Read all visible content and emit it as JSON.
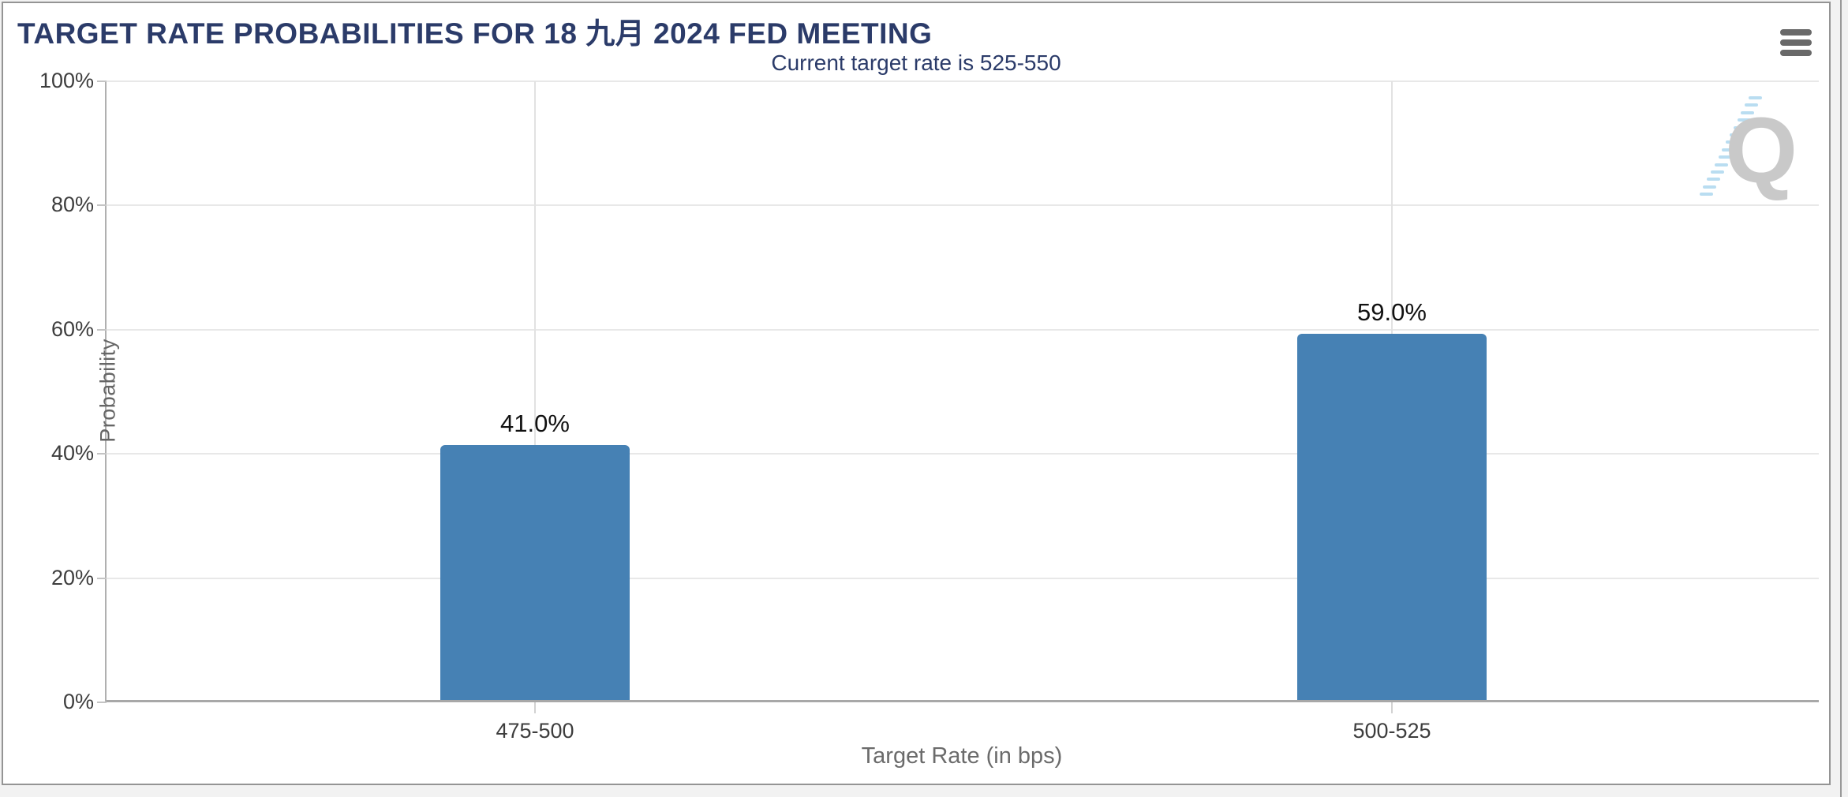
{
  "page": {
    "background_color": "#f2f2f2",
    "panel_border_color": "#949494"
  },
  "panel": {
    "title": "TARGET RATE PROBABILITIES FOR 18 九月 2024 FED MEETING",
    "title_color": "#2b3b69",
    "menu_icon": "hamburger-icon"
  },
  "chart_data": {
    "type": "bar",
    "title": "Current target rate is 525-550",
    "title_color": "#2b3b69",
    "categories": [
      "475-500",
      "500-525"
    ],
    "values": [
      41.0,
      59.0
    ],
    "value_labels": [
      "41.0%",
      "59.0%"
    ],
    "xlabel": "Target Rate (in bps)",
    "ylabel": "Probability",
    "ylim": [
      0,
      100
    ],
    "y_ticks": [
      0,
      20,
      40,
      60,
      80,
      100
    ],
    "y_tick_labels": [
      "0%",
      "20%",
      "40%",
      "60%",
      "80%",
      "100%"
    ],
    "bar_color": "#4681b4",
    "grid": true,
    "legend": "none"
  },
  "watermark": {
    "letter": "Q"
  }
}
